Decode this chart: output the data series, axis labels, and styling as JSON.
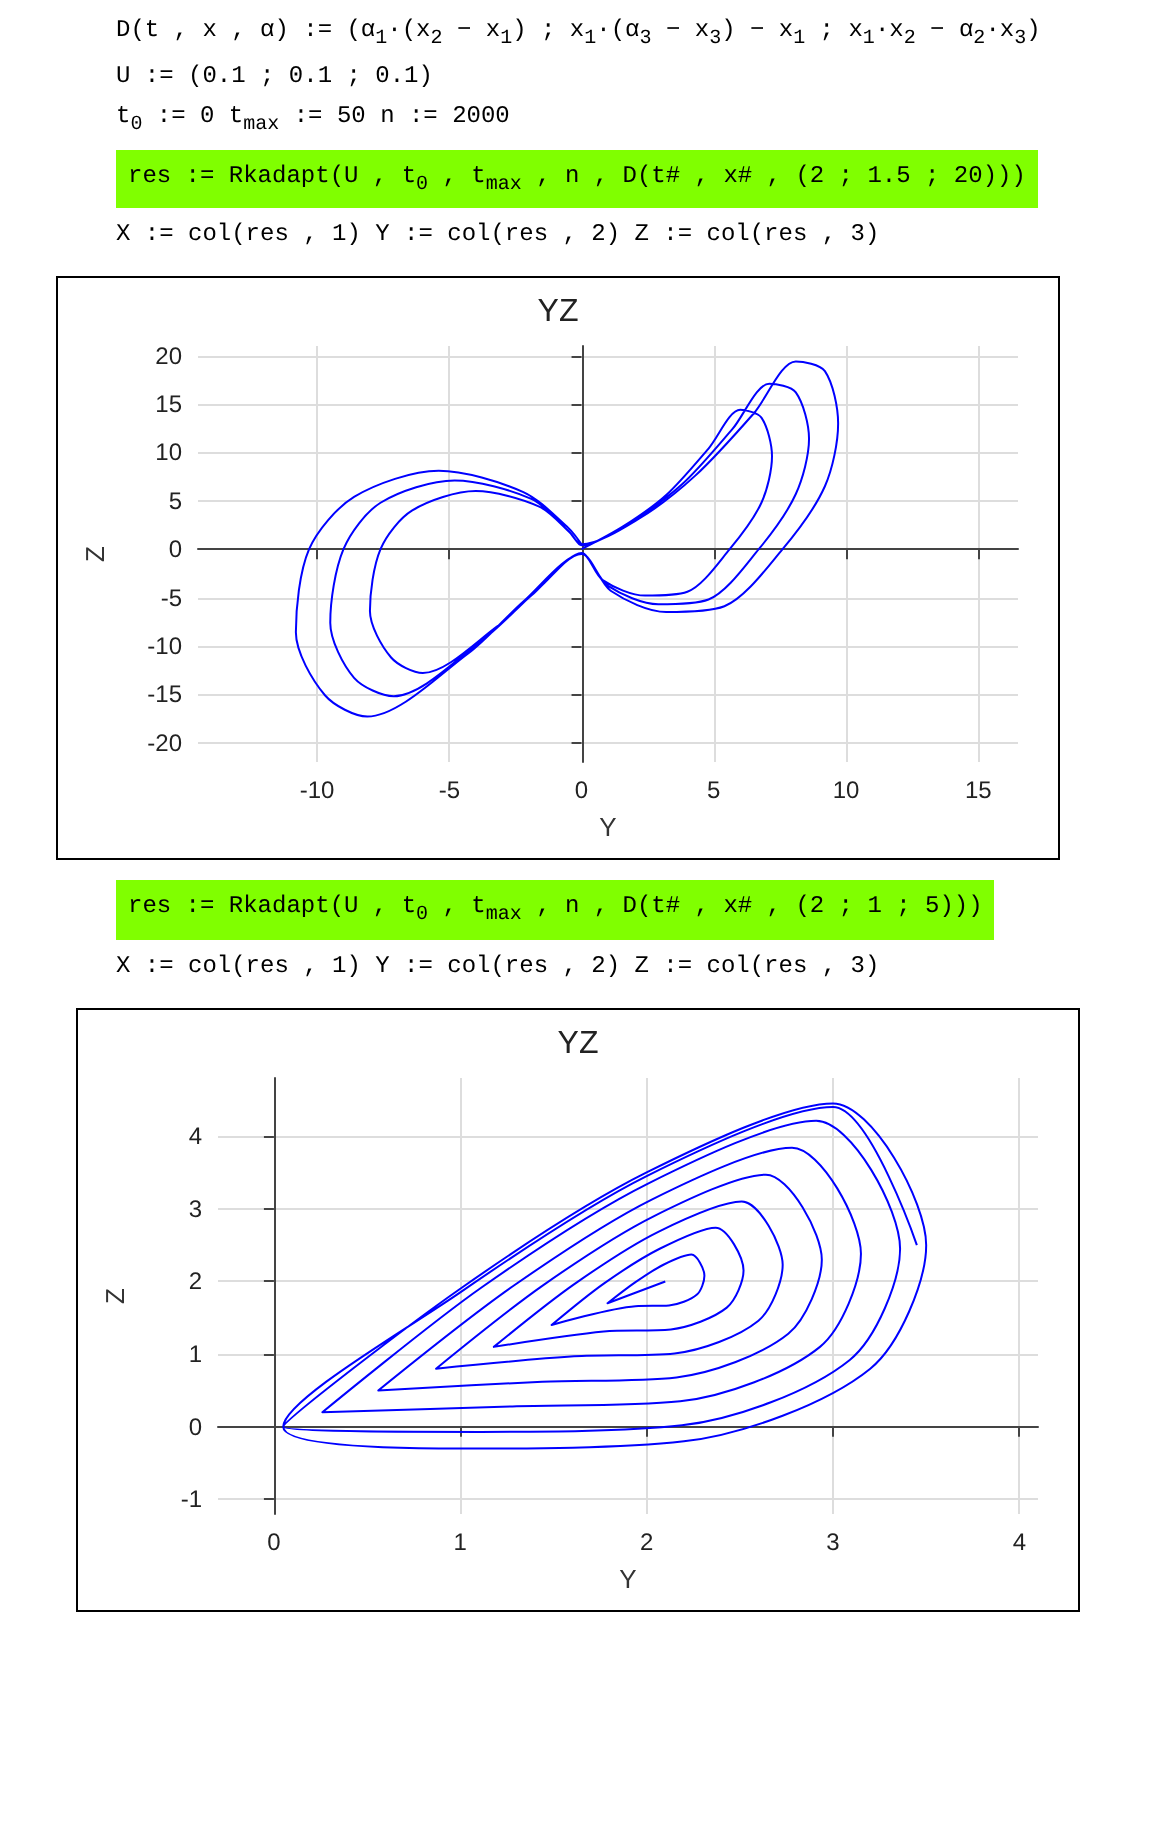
{
  "chart_data": [
    {
      "type": "line",
      "title": "YZ",
      "xlabel": "Y",
      "ylabel": "Z",
      "annotations": [
        "D(t , x , α) := (α$_{1}$·(x$_{2}$ − x$_{1}$) ; x$_{1}$·(α$_{3}$ − x$_{3}$) − x$_{1}$ ; x$_{1}$·x$_{2}$ − α$_{2}$·x$_{3}$)",
        "U := (0.1 ; 0.1 ; 0.1)",
        "t$_{0}$ := 0    t$_{max}$ := 50    n := 2000",
        "res := Rkadapt(U , t$_{0}$ , t$_{max}$ , n , D(t# , x# , (2 ; 1.5 ; 20)))",
        "X := col(res , 1)   Y := col(res , 2)   Z := col(res , 3)"
      ],
      "xlim": [
        -14.5,
        16.5
      ],
      "xticks": [
        -10,
        -5,
        0,
        5,
        10,
        15
      ],
      "ylim": [
        -22,
        21
      ],
      "yticks": [
        -20,
        -15,
        -10,
        -5,
        0,
        5,
        10,
        15,
        20
      ],
      "grid": true,
      "line_style": "solid",
      "marker": "none",
      "series": [
        {
          "color": "#0000ff",
          "x": [
            0,
            1.6,
            3.2,
            4.8,
            6,
            6.8,
            7.2,
            6.8,
            5.6,
            4,
            2.4,
            0.8,
            0,
            -1.6,
            -3.2,
            -6,
            -7.2,
            -8,
            -7.6,
            -6.4,
            -4,
            -1.6,
            -0.4,
            0,
            1.9,
            3.8,
            5.7,
            7.1,
            8.1,
            8.6,
            8.1,
            6.7,
            4.8,
            2.9,
            1,
            0,
            -1.9,
            -3.8,
            -7.1,
            -8.6,
            -9.5,
            -9,
            -7.6,
            -4.8,
            -1.9,
            -0.5,
            0,
            2.2,
            4.3,
            6.5,
            8.1,
            9.2,
            9.7,
            9.2,
            7.6,
            5.4,
            3.2,
            1.1,
            0,
            -2.2,
            -4.3,
            -8.1,
            -9.7,
            -10.8,
            -10.3,
            -8.6,
            -5.4,
            -2.2,
            -0.5,
            0
          ],
          "values": [
            0,
            2.4,
            5.6,
            10.4,
            14.4,
            13.6,
            9.6,
            4.8,
            0,
            -4.4,
            -4.8,
            -3.2,
            -0.4,
            -4,
            -8,
            -12.8,
            -11.2,
            -6.4,
            0,
            4,
            6,
            4.4,
            1.6,
            0.4,
            2.9,
            6.7,
            12.4,
            17.1,
            16.2,
            11.4,
            5.7,
            0,
            -5.2,
            -5.7,
            -3.8,
            -0.5,
            -4.8,
            -9.5,
            -15.2,
            -13.3,
            -7.6,
            0,
            4.8,
            7.1,
            5.2,
            1.9,
            0.5,
            3.2,
            7.6,
            14,
            19.4,
            18.4,
            13,
            6.5,
            0,
            -5.9,
            -6.5,
            -4.3,
            -0.5,
            -5.4,
            -10.8,
            -17.3,
            -15.1,
            -8.6,
            0,
            5.4,
            8.1,
            5.9,
            2.2,
            0.5
          ]
        }
      ]
    },
    {
      "type": "line",
      "title": "YZ",
      "xlabel": "Y",
      "ylabel": "Z",
      "annotations": [
        "res := Rkadapt(U , t$_{0}$ , t$_{max}$ , n , D(t# , x# , (2 ; 1 ; 5)))",
        "X := col(res , 1)   Y := col(res , 2)   Z := col(res , 3)"
      ],
      "xlim": [
        -0.3,
        4.1
      ],
      "xticks": [
        0,
        1,
        2,
        3,
        4
      ],
      "ylim": [
        -1.2,
        4.8
      ],
      "yticks": [
        -1,
        0,
        1,
        2,
        3,
        4
      ],
      "grid": true,
      "line_style": "solid",
      "marker": "none",
      "series": [
        {
          "color": "#0000ff",
          "x": [
            2.1,
            1.79,
            1.94,
            2.09,
            2.24,
            2.31,
            2.27,
            2.12,
            1.94,
            1.49,
            1.77,
            2.07,
            2.37,
            2.52,
            2.43,
            2.13,
            1.77,
            1.18,
            1.61,
            2.06,
            2.51,
            2.73,
            2.6,
            2.15,
            1.61,
            0.87,
            1.44,
            2.04,
            2.64,
            2.94,
            2.76,
            2.16,
            1.44,
            0.56,
            1.28,
            2.03,
            2.78,
            3.15,
            2.93,
            2.18,
            1.28,
            0.26,
            1.11,
            2.01,
            2.91,
            3.36,
            3.09,
            2.19,
            1.11,
            0.05,
            1,
            2,
            3,
            3.5,
            3.2,
            2.2,
            1,
            0.05,
            1,
            2,
            3,
            3.45
          ],
          "values": [
            2,
            1.7,
            1.99,
            2.23,
            2.37,
            2.08,
            1.82,
            1.67,
            1.66,
            1.4,
            1.97,
            2.45,
            2.74,
            2.15,
            1.64,
            1.34,
            1.31,
            1.1,
            1.96,
            2.68,
            3.1,
            2.23,
            1.46,
            1.01,
            0.97,
            0.8,
            1.94,
            2.9,
            3.47,
            2.3,
            1.28,
            0.68,
            0.62,
            0.5,
            1.93,
            3.13,
            3.84,
            2.38,
            1.1,
            0.35,
            0.28,
            0.2,
            1.91,
            3.35,
            4.21,
            2.45,
            0.92,
            0.02,
            -0.07,
            0,
            1.9,
            3.5,
            4.45,
            2.5,
            0.8,
            -0.2,
            -0.3,
            0,
            1.85,
            3.45,
            4.4,
            2.5
          ]
        }
      ]
    }
  ]
}
